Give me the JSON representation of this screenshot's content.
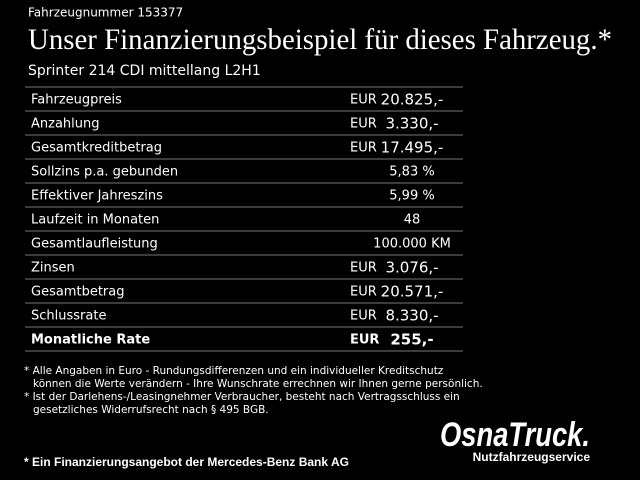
{
  "header": {
    "vehicle_number": "Fahrzeugnummer 153377",
    "title": "Unser Finanzierungsbeispiel für dieses Fahrzeug.*",
    "subtitle": "Sprinter 214 CDI mittellang L2H1"
  },
  "table": {
    "rows": [
      {
        "label": "Fahrzeugpreis",
        "currency": "EUR",
        "value": "20.825,-"
      },
      {
        "label": "Anzahlung",
        "currency": "EUR",
        "value": "3.330,-"
      },
      {
        "label": "Gesamtkreditbetrag",
        "currency": "EUR",
        "value": "17.495,-"
      },
      {
        "label": "Sollzins p.a. gebunden",
        "value": "5,83 %"
      },
      {
        "label": "Effektiver Jahreszins",
        "value": "5,99 %"
      },
      {
        "label": "Laufzeit in Monaten",
        "value": "48"
      },
      {
        "label": "Gesamtlaufleistung",
        "value": "100.000 KM"
      },
      {
        "label": "Zinsen",
        "currency": "EUR",
        "value": "3.076,-"
      },
      {
        "label": "Gesamtbetrag",
        "currency": "EUR",
        "value": "20.571,-"
      },
      {
        "label": "Schlussrate",
        "currency": "EUR",
        "value": "8.330,-"
      },
      {
        "label": "Monatliche Rate",
        "currency": "EUR",
        "value": "255,-"
      }
    ]
  },
  "footnotes": [
    [
      "* Alle Angaben in Euro - Rundungsdifferenzen und ein individueller Kreditschutz",
      "können die Werte verändern - Ihre Wunschrate errechnen wir Ihnen gerne persönlich."
    ],
    [
      "* Ist der Darlehens-/Leasingnehmer Verbraucher, besteht nach Vertragsschluss ein",
      "gesetzliches Widerrufsrecht nach § 495 BGB."
    ]
  ],
  "logo": {
    "name": "OsnaTruck.",
    "tagline": "Nutzfahrzeugservice"
  },
  "bottom_note": "* Ein Finanzierungsangebot der Mercedes-Benz Bank AG"
}
